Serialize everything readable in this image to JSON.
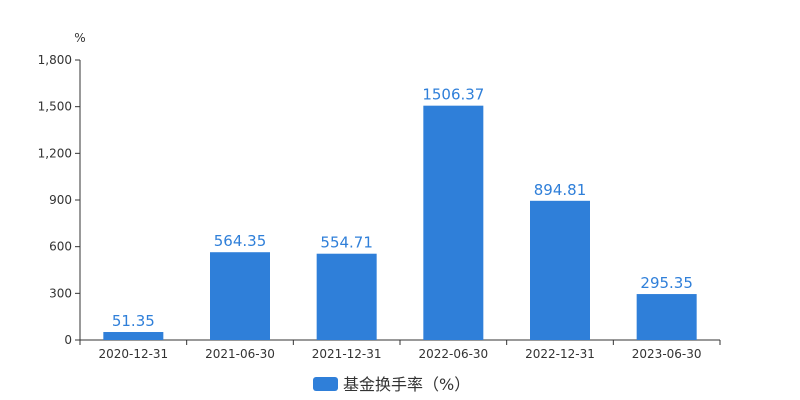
{
  "chart_data": {
    "type": "bar",
    "categories": [
      "2020-12-31",
      "2021-06-30",
      "2021-12-31",
      "2022-06-30",
      "2022-12-31",
      "2023-06-30"
    ],
    "series": [
      {
        "name": "基金换手率（%）",
        "values": [
          51.35,
          564.35,
          554.71,
          1506.37,
          894.81,
          295.35
        ],
        "labels": [
          "51.35",
          "564.35",
          "554.71",
          "1506.37",
          "894.81",
          "295.35"
        ],
        "color": "#2f7fd9"
      }
    ],
    "y_unit": "%",
    "ylim": [
      0,
      1800
    ],
    "yticks": [
      0,
      300,
      600,
      900,
      1200,
      1500,
      1800
    ],
    "ytick_labels": [
      "0",
      "300",
      "600",
      "900",
      "1,200",
      "1,500",
      "1,800"
    ],
    "grid": false,
    "legend_position": "bottom-center"
  }
}
